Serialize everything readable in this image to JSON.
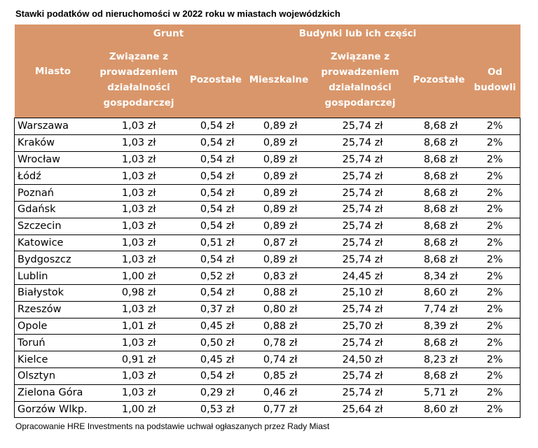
{
  "title": "Stawki podatków od nieruchomości w 2022 roku w miastach wojewódzkich",
  "header": {
    "groups": [
      "Grunt",
      "Budynki lub ich części"
    ],
    "columns": [
      "Miasto",
      "Związane z prowadzeniem działalności gospodarczej",
      "Pozostałe",
      "Mieszkalne",
      "Związane z prowadzeniem działalności gospodarczej",
      "Pozostałe",
      "Od budowli"
    ]
  },
  "table": {
    "rows": [
      [
        "Warszawa",
        "1,03 zł",
        "0,54 zł",
        "0,89 zł",
        "25,74 zł",
        "8,68 zł",
        "2%"
      ],
      [
        "Kraków",
        "1,03 zł",
        "0,54 zł",
        "0,89 zł",
        "25,74 zł",
        "8,68 zł",
        "2%"
      ],
      [
        "Wrocław",
        "1,03 zł",
        "0,54 zł",
        "0,89 zł",
        "25,74 zł",
        "8,68 zł",
        "2%"
      ],
      [
        "Łódź",
        "1,03 zł",
        "0,54 zł",
        "0,89 zł",
        "25,74 zł",
        "8,68 zł",
        "2%"
      ],
      [
        "Poznań",
        "1,03 zł",
        "0,54 zł",
        "0,89 zł",
        "25,74 zł",
        "8,68 zł",
        "2%"
      ],
      [
        "Gdańsk",
        "1,03 zł",
        "0,54 zł",
        "0,89 zł",
        "25,74 zł",
        "8,68 zł",
        "2%"
      ],
      [
        "Szczecin",
        "1,03 zł",
        "0,54 zł",
        "0,89 zł",
        "25,74 zł",
        "8,68 zł",
        "2%"
      ],
      [
        "Katowice",
        "1,03 zł",
        "0,51 zł",
        "0,87 zł",
        "25,74 zł",
        "8,68 zł",
        "2%"
      ],
      [
        "Bydgoszcz",
        "1,03 zł",
        "0,54 zł",
        "0,89 zł",
        "25,74 zł",
        "8,68 zł",
        "2%"
      ],
      [
        "Lublin",
        "1,00 zł",
        "0,52 zł",
        "0,83 zł",
        "24,45 zł",
        "8,34 zł",
        "2%"
      ],
      [
        "Białystok",
        "0,98 zł",
        "0,54 zł",
        "0,88 zł",
        "25,10 zł",
        "8,60 zł",
        "2%"
      ],
      [
        "Rzeszów",
        "1,03 zł",
        "0,37 zł",
        "0,80 zł",
        "25,74 zł",
        "7,74 zł",
        "2%"
      ],
      [
        "Opole",
        "1,01 zł",
        "0,45 zł",
        "0,88 zł",
        "25,70 zł",
        "8,39 zł",
        "2%"
      ],
      [
        "Toruń",
        "1,03 zł",
        "0,50 zł",
        "0,78 zł",
        "25,74 zł",
        "8,68 zł",
        "2%"
      ],
      [
        "Kielce",
        "0,91 zł",
        "0,45 zł",
        "0,74 zł",
        "24,50 zł",
        "8,23 zł",
        "2%"
      ],
      [
        "Olsztyn",
        "1,03 zł",
        "0,54 zł",
        "0,85 zł",
        "25,74 zł",
        "8,68 zł",
        "2%"
      ],
      [
        "Zielona Góra",
        "1,03 zł",
        "0,29 zł",
        "0,46 zł",
        "25,74 zł",
        "5,71 zł",
        "2%"
      ],
      [
        "Gorzów Wlkp.",
        "1,00 zł",
        "0,53 zł",
        "0,77 zł",
        "25,64 zł",
        "8,60 zł",
        "2%"
      ]
    ]
  },
  "footer": "Opracowanie HRE Investments na podstawie uchwał ogłaszanych przez Rady Miast"
}
